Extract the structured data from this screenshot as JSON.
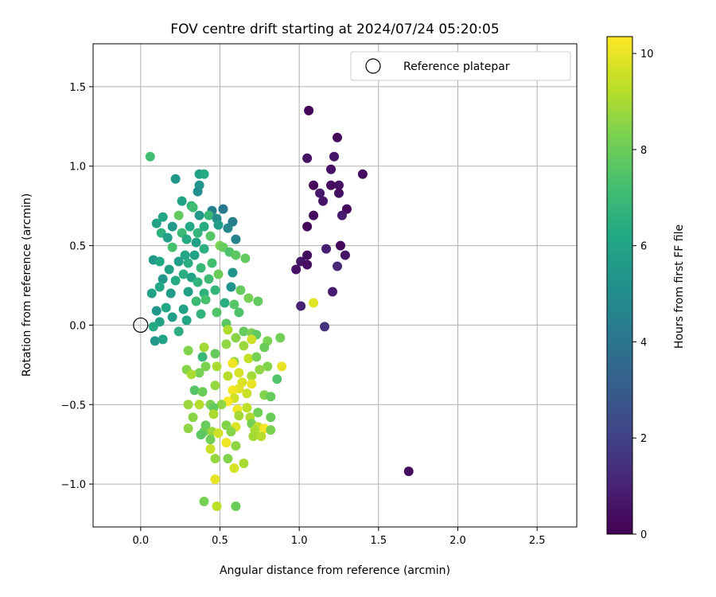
{
  "chart_data": {
    "type": "scatter",
    "title": "FOV centre drift starting at 2024/07/24 05:20:05",
    "xlabel": "Angular distance from reference (arcmin)",
    "ylabel": "Rotation from reference (arcmin)",
    "xlim": [
      -0.3,
      2.75
    ],
    "ylim": [
      -1.27,
      1.77
    ],
    "xticks": [
      0.0,
      0.5,
      1.0,
      1.5,
      2.0,
      2.5
    ],
    "xtick_labels": [
      "0.0",
      "0.5",
      "1.0",
      "1.5",
      "2.0",
      "2.5"
    ],
    "yticks": [
      -1.0,
      -0.5,
      0.0,
      0.5,
      1.0,
      1.5
    ],
    "ytick_labels": [
      "−1.0",
      "−0.5",
      "0.0",
      "0.5",
      "1.0",
      "1.5"
    ],
    "grid": true,
    "legend": {
      "position": "top-right",
      "entries": [
        "Reference platepar"
      ]
    },
    "colorbar": {
      "label": "Hours from first FF file",
      "range": [
        0,
        10.35
      ],
      "ticks": [
        0,
        2,
        4,
        6,
        8,
        10
      ],
      "tick_labels": [
        "0",
        "2",
        "4",
        "6",
        "8",
        "10"
      ],
      "colormap": "viridis"
    },
    "reference_point": {
      "x": 0.0,
      "y": 0.0
    },
    "points": [
      {
        "x": 1.06,
        "y": 1.35,
        "t": 0.1
      },
      {
        "x": 1.24,
        "y": 1.18,
        "t": 0.2
      },
      {
        "x": 1.05,
        "y": 1.05,
        "t": 0.5
      },
      {
        "x": 1.22,
        "y": 1.06,
        "t": 0.6
      },
      {
        "x": 1.4,
        "y": 0.95,
        "t": 0.3
      },
      {
        "x": 1.2,
        "y": 0.98,
        "t": 0.4
      },
      {
        "x": 1.09,
        "y": 0.88,
        "t": 0.2
      },
      {
        "x": 1.2,
        "y": 0.88,
        "t": 0.3
      },
      {
        "x": 1.25,
        "y": 0.88,
        "t": 0.5
      },
      {
        "x": 1.13,
        "y": 0.83,
        "t": 0.7
      },
      {
        "x": 1.25,
        "y": 0.83,
        "t": 0.4
      },
      {
        "x": 1.15,
        "y": 0.78,
        "t": 0.6
      },
      {
        "x": 1.3,
        "y": 0.73,
        "t": 0.2
      },
      {
        "x": 1.27,
        "y": 0.69,
        "t": 0.8
      },
      {
        "x": 1.09,
        "y": 0.69,
        "t": 0.3
      },
      {
        "x": 1.05,
        "y": 0.62,
        "t": 0.1
      },
      {
        "x": 1.26,
        "y": 0.5,
        "t": 0.2
      },
      {
        "x": 1.17,
        "y": 0.48,
        "t": 0.9
      },
      {
        "x": 1.29,
        "y": 0.44,
        "t": 0.5
      },
      {
        "x": 1.05,
        "y": 0.44,
        "t": 0.3
      },
      {
        "x": 1.01,
        "y": 0.4,
        "t": 0.6
      },
      {
        "x": 1.24,
        "y": 0.37,
        "t": 1.2
      },
      {
        "x": 1.05,
        "y": 0.38,
        "t": 0.4
      },
      {
        "x": 0.98,
        "y": 0.35,
        "t": 0.5
      },
      {
        "x": 1.21,
        "y": 0.21,
        "t": 0.8
      },
      {
        "x": 1.01,
        "y": 0.12,
        "t": 1.0
      },
      {
        "x": 1.09,
        "y": 0.14,
        "t": 9.9
      },
      {
        "x": 1.16,
        "y": -0.01,
        "t": 1.5
      },
      {
        "x": 1.69,
        "y": -0.92,
        "t": 0.3
      },
      {
        "x": 0.06,
        "y": 1.06,
        "t": 7.2
      },
      {
        "x": 0.22,
        "y": 0.92,
        "t": 5.4
      },
      {
        "x": 0.37,
        "y": 0.95,
        "t": 5.8
      },
      {
        "x": 0.4,
        "y": 0.95,
        "t": 6.3
      },
      {
        "x": 0.37,
        "y": 0.88,
        "t": 5.3
      },
      {
        "x": 0.36,
        "y": 0.84,
        "t": 5.1
      },
      {
        "x": 0.26,
        "y": 0.78,
        "t": 6.0
      },
      {
        "x": 0.32,
        "y": 0.75,
        "t": 6.7
      },
      {
        "x": 0.33,
        "y": 0.74,
        "t": 7.1
      },
      {
        "x": 0.52,
        "y": 0.73,
        "t": 4.2
      },
      {
        "x": 0.45,
        "y": 0.72,
        "t": 4.5
      },
      {
        "x": 0.24,
        "y": 0.69,
        "t": 7.8
      },
      {
        "x": 0.37,
        "y": 0.69,
        "t": 5.5
      },
      {
        "x": 0.43,
        "y": 0.69,
        "t": 6.9
      },
      {
        "x": 0.14,
        "y": 0.68,
        "t": 6.1
      },
      {
        "x": 0.48,
        "y": 0.67,
        "t": 5.0
      },
      {
        "x": 0.58,
        "y": 0.65,
        "t": 4.4
      },
      {
        "x": 0.1,
        "y": 0.64,
        "t": 5.9
      },
      {
        "x": 0.2,
        "y": 0.62,
        "t": 5.6
      },
      {
        "x": 0.31,
        "y": 0.62,
        "t": 6.2
      },
      {
        "x": 0.4,
        "y": 0.62,
        "t": 6.4
      },
      {
        "x": 0.49,
        "y": 0.63,
        "t": 5.7
      },
      {
        "x": 0.55,
        "y": 0.61,
        "t": 4.8
      },
      {
        "x": 0.13,
        "y": 0.58,
        "t": 6.6
      },
      {
        "x": 0.26,
        "y": 0.58,
        "t": 7.0
      },
      {
        "x": 0.36,
        "y": 0.58,
        "t": 6.8
      },
      {
        "x": 0.44,
        "y": 0.56,
        "t": 7.6
      },
      {
        "x": 0.6,
        "y": 0.54,
        "t": 4.6
      },
      {
        "x": 0.17,
        "y": 0.55,
        "t": 5.8
      },
      {
        "x": 0.29,
        "y": 0.54,
        "t": 6.3
      },
      {
        "x": 0.35,
        "y": 0.52,
        "t": 5.9
      },
      {
        "x": 0.5,
        "y": 0.5,
        "t": 8.3
      },
      {
        "x": 0.52,
        "y": 0.49,
        "t": 7.9
      },
      {
        "x": 0.2,
        "y": 0.49,
        "t": 7.3
      },
      {
        "x": 0.4,
        "y": 0.48,
        "t": 6.5
      },
      {
        "x": 0.56,
        "y": 0.46,
        "t": 7.4
      },
      {
        "x": 0.6,
        "y": 0.44,
        "t": 7.7
      },
      {
        "x": 0.28,
        "y": 0.44,
        "t": 6.1
      },
      {
        "x": 0.34,
        "y": 0.44,
        "t": 6.0
      },
      {
        "x": 0.66,
        "y": 0.42,
        "t": 7.8
      },
      {
        "x": 0.08,
        "y": 0.41,
        "t": 5.6
      },
      {
        "x": 0.12,
        "y": 0.4,
        "t": 6.2
      },
      {
        "x": 0.24,
        "y": 0.4,
        "t": 5.7
      },
      {
        "x": 0.3,
        "y": 0.39,
        "t": 6.4
      },
      {
        "x": 0.45,
        "y": 0.39,
        "t": 7.2
      },
      {
        "x": 0.38,
        "y": 0.36,
        "t": 6.9
      },
      {
        "x": 0.18,
        "y": 0.35,
        "t": 5.9
      },
      {
        "x": 0.58,
        "y": 0.33,
        "t": 5.3
      },
      {
        "x": 0.49,
        "y": 0.32,
        "t": 8.0
      },
      {
        "x": 0.27,
        "y": 0.32,
        "t": 6.5
      },
      {
        "x": 0.32,
        "y": 0.3,
        "t": 6.0
      },
      {
        "x": 0.43,
        "y": 0.29,
        "t": 7.1
      },
      {
        "x": 0.14,
        "y": 0.29,
        "t": 5.5
      },
      {
        "x": 0.22,
        "y": 0.28,
        "t": 6.3
      },
      {
        "x": 0.36,
        "y": 0.27,
        "t": 6.7
      },
      {
        "x": 0.12,
        "y": 0.24,
        "t": 6.1
      },
      {
        "x": 0.57,
        "y": 0.24,
        "t": 5.2
      },
      {
        "x": 0.63,
        "y": 0.22,
        "t": 7.9
      },
      {
        "x": 0.47,
        "y": 0.22,
        "t": 6.8
      },
      {
        "x": 0.3,
        "y": 0.21,
        "t": 5.8
      },
      {
        "x": 0.4,
        "y": 0.2,
        "t": 6.6
      },
      {
        "x": 0.19,
        "y": 0.2,
        "t": 5.6
      },
      {
        "x": 0.07,
        "y": 0.2,
        "t": 6.0
      },
      {
        "x": 0.68,
        "y": 0.17,
        "t": 8.2
      },
      {
        "x": 0.41,
        "y": 0.16,
        "t": 7.3
      },
      {
        "x": 0.35,
        "y": 0.15,
        "t": 7.0
      },
      {
        "x": 0.53,
        "y": 0.14,
        "t": 6.4
      },
      {
        "x": 0.59,
        "y": 0.13,
        "t": 7.6
      },
      {
        "x": 0.74,
        "y": 0.15,
        "t": 7.8
      },
      {
        "x": 0.16,
        "y": 0.11,
        "t": 6.2
      },
      {
        "x": 0.27,
        "y": 0.1,
        "t": 5.9
      },
      {
        "x": 0.1,
        "y": 0.09,
        "t": 5.4
      },
      {
        "x": 0.48,
        "y": 0.08,
        "t": 7.5
      },
      {
        "x": 0.62,
        "y": 0.08,
        "t": 7.4
      },
      {
        "x": 0.38,
        "y": 0.07,
        "t": 6.7
      },
      {
        "x": 0.2,
        "y": 0.05,
        "t": 5.7
      },
      {
        "x": 0.29,
        "y": 0.03,
        "t": 6.1
      },
      {
        "x": 0.54,
        "y": 0.01,
        "t": 7.7
      },
      {
        "x": 0.12,
        "y": 0.02,
        "t": 6.0
      },
      {
        "x": 0.08,
        "y": -0.01,
        "t": 6.3
      },
      {
        "x": 0.24,
        "y": -0.04,
        "t": 6.5
      },
      {
        "x": 0.55,
        "y": -0.03,
        "t": 9.1
      },
      {
        "x": 0.65,
        "y": -0.04,
        "t": 7.9
      },
      {
        "x": 0.7,
        "y": -0.05,
        "t": 8.2
      },
      {
        "x": 0.73,
        "y": -0.06,
        "t": 7.8
      },
      {
        "x": 0.6,
        "y": -0.08,
        "t": 8.5
      },
      {
        "x": 0.09,
        "y": -0.1,
        "t": 5.5
      },
      {
        "x": 0.14,
        "y": -0.09,
        "t": 6.0
      },
      {
        "x": 0.7,
        "y": -0.09,
        "t": 9.6
      },
      {
        "x": 0.8,
        "y": -0.1,
        "t": 8.3
      },
      {
        "x": 0.54,
        "y": -0.12,
        "t": 8.6
      },
      {
        "x": 0.65,
        "y": -0.13,
        "t": 8.8
      },
      {
        "x": 0.88,
        "y": -0.08,
        "t": 8.1
      },
      {
        "x": 0.78,
        "y": -0.14,
        "t": 8.0
      },
      {
        "x": 0.4,
        "y": -0.14,
        "t": 8.9
      },
      {
        "x": 0.3,
        "y": -0.16,
        "t": 8.4
      },
      {
        "x": 0.47,
        "y": -0.18,
        "t": 7.9
      },
      {
        "x": 0.39,
        "y": -0.2,
        "t": 6.9
      },
      {
        "x": 0.59,
        "y": -0.23,
        "t": 8.7
      },
      {
        "x": 0.68,
        "y": -0.21,
        "t": 9.4
      },
      {
        "x": 0.73,
        "y": -0.2,
        "t": 8.2
      },
      {
        "x": 0.58,
        "y": -0.24,
        "t": 10.1
      },
      {
        "x": 0.48,
        "y": -0.26,
        "t": 9.0
      },
      {
        "x": 0.41,
        "y": -0.26,
        "t": 8.3
      },
      {
        "x": 0.8,
        "y": -0.26,
        "t": 8.4
      },
      {
        "x": 0.89,
        "y": -0.26,
        "t": 10.0
      },
      {
        "x": 0.75,
        "y": -0.28,
        "t": 8.6
      },
      {
        "x": 0.29,
        "y": -0.28,
        "t": 8.5
      },
      {
        "x": 0.37,
        "y": -0.3,
        "t": 8.2
      },
      {
        "x": 0.62,
        "y": -0.3,
        "t": 9.7
      },
      {
        "x": 0.7,
        "y": -0.32,
        "t": 8.9
      },
      {
        "x": 0.55,
        "y": -0.32,
        "t": 9.2
      },
      {
        "x": 0.32,
        "y": -0.31,
        "t": 9.0
      },
      {
        "x": 0.86,
        "y": -0.34,
        "t": 7.5
      },
      {
        "x": 0.64,
        "y": -0.36,
        "t": 9.8
      },
      {
        "x": 0.7,
        "y": -0.37,
        "t": 10.0
      },
      {
        "x": 0.47,
        "y": -0.38,
        "t": 8.7
      },
      {
        "x": 0.62,
        "y": -0.4,
        "t": 9.9
      },
      {
        "x": 0.58,
        "y": -0.41,
        "t": 10.2
      },
      {
        "x": 0.34,
        "y": -0.41,
        "t": 7.6
      },
      {
        "x": 0.39,
        "y": -0.42,
        "t": 8.0
      },
      {
        "x": 0.67,
        "y": -0.43,
        "t": 9.5
      },
      {
        "x": 0.78,
        "y": -0.44,
        "t": 8.4
      },
      {
        "x": 0.82,
        "y": -0.45,
        "t": 7.9
      },
      {
        "x": 0.59,
        "y": -0.46,
        "t": 9.6
      },
      {
        "x": 0.55,
        "y": -0.48,
        "t": 10.3
      },
      {
        "x": 0.44,
        "y": -0.5,
        "t": 8.3
      },
      {
        "x": 0.51,
        "y": -0.5,
        "t": 8.6
      },
      {
        "x": 0.67,
        "y": -0.52,
        "t": 9.3
      },
      {
        "x": 0.61,
        "y": -0.53,
        "t": 10.1
      },
      {
        "x": 0.3,
        "y": -0.5,
        "t": 8.8
      },
      {
        "x": 0.37,
        "y": -0.5,
        "t": 9.2
      },
      {
        "x": 0.46,
        "y": -0.52,
        "t": 7.8
      },
      {
        "x": 0.74,
        "y": -0.55,
        "t": 8.1
      },
      {
        "x": 0.46,
        "y": -0.56,
        "t": 9.0
      },
      {
        "x": 0.62,
        "y": -0.57,
        "t": 8.9
      },
      {
        "x": 0.33,
        "y": -0.58,
        "t": 8.5
      },
      {
        "x": 0.82,
        "y": -0.58,
        "t": 8.0
      },
      {
        "x": 0.69,
        "y": -0.58,
        "t": 9.1
      },
      {
        "x": 0.7,
        "y": -0.62,
        "t": 8.2
      },
      {
        "x": 0.41,
        "y": -0.63,
        "t": 7.9
      },
      {
        "x": 0.54,
        "y": -0.63,
        "t": 8.4
      },
      {
        "x": 0.74,
        "y": -0.64,
        "t": 9.4
      },
      {
        "x": 0.6,
        "y": -0.64,
        "t": 9.8
      },
      {
        "x": 0.3,
        "y": -0.65,
        "t": 8.6
      },
      {
        "x": 0.78,
        "y": -0.65,
        "t": 10.2
      },
      {
        "x": 0.72,
        "y": -0.66,
        "t": 9.0
      },
      {
        "x": 0.82,
        "y": -0.66,
        "t": 8.3
      },
      {
        "x": 0.4,
        "y": -0.67,
        "t": 8.0
      },
      {
        "x": 0.45,
        "y": -0.67,
        "t": 8.8
      },
      {
        "x": 0.49,
        "y": -0.68,
        "t": 9.6
      },
      {
        "x": 0.57,
        "y": -0.67,
        "t": 8.5
      },
      {
        "x": 0.38,
        "y": -0.69,
        "t": 7.7
      },
      {
        "x": 0.71,
        "y": -0.7,
        "t": 8.9
      },
      {
        "x": 0.76,
        "y": -0.7,
        "t": 9.2
      },
      {
        "x": 0.44,
        "y": -0.72,
        "t": 8.1
      },
      {
        "x": 0.54,
        "y": -0.74,
        "t": 10.1
      },
      {
        "x": 0.6,
        "y": -0.76,
        "t": 8.6
      },
      {
        "x": 0.44,
        "y": -0.78,
        "t": 9.5
      },
      {
        "x": 0.55,
        "y": -0.84,
        "t": 8.4
      },
      {
        "x": 0.47,
        "y": -0.84,
        "t": 8.7
      },
      {
        "x": 0.65,
        "y": -0.87,
        "t": 9.0
      },
      {
        "x": 0.59,
        "y": -0.9,
        "t": 9.7
      },
      {
        "x": 0.47,
        "y": -0.97,
        "t": 10.0
      },
      {
        "x": 0.4,
        "y": -1.11,
        "t": 8.2
      },
      {
        "x": 0.48,
        "y": -1.14,
        "t": 9.3
      },
      {
        "x": 0.6,
        "y": -1.14,
        "t": 8.0
      }
    ]
  }
}
